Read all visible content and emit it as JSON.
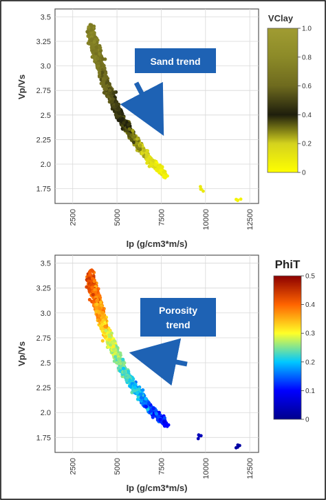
{
  "chart_data": [
    {
      "type": "scatter",
      "xlabel": "Ip (g/cm3*m/s)",
      "ylabel": "Vp/Vs",
      "xlim": [
        1500,
        13000
      ],
      "ylim": [
        1.6,
        3.58
      ],
      "xticks": [
        "2500",
        "5000",
        "7500",
        "10000",
        "12500"
      ],
      "yticks": [
        "3.5",
        "3.25",
        "3.0",
        "2.75",
        "2.5",
        "2.25",
        "2.0",
        "1.75"
      ],
      "grid": true,
      "color_by": "VClay",
      "colorbar": {
        "label": "VClay",
        "ticks": [
          "1.0",
          "0.8",
          "0.6",
          "0.4",
          "0.2",
          "0"
        ],
        "range": [
          0,
          1
        ],
        "colors": [
          "#ffff00",
          "#d4d21e",
          "#1e1e0c",
          "#6e6a1e",
          "#8c8a28",
          "#a09c32"
        ]
      },
      "annotation": {
        "text": "Sand trend",
        "box_color": "#1e62b4",
        "arrow_direction": "down-right"
      },
      "trend_points": [
        {
          "x": 3500,
          "y": 3.35,
          "c": 0.75
        },
        {
          "x": 3900,
          "y": 3.1,
          "c": 0.7
        },
        {
          "x": 4300,
          "y": 2.85,
          "c": 0.6
        },
        {
          "x": 4800,
          "y": 2.65,
          "c": 0.5
        },
        {
          "x": 5300,
          "y": 2.45,
          "c": 0.4
        },
        {
          "x": 6000,
          "y": 2.25,
          "c": 0.3
        },
        {
          "x": 6800,
          "y": 2.05,
          "c": 0.15
        },
        {
          "x": 7800,
          "y": 1.88,
          "c": 0.05
        },
        {
          "x": 9700,
          "y": 1.75,
          "c": 0.1
        },
        {
          "x": 11800,
          "y": 1.65,
          "c": 0.05
        }
      ]
    },
    {
      "type": "scatter",
      "xlabel": "Ip (g/cm3*m/s)",
      "ylabel": "Vp/Vs",
      "xlim": [
        1500,
        13000
      ],
      "ylim": [
        1.6,
        3.58
      ],
      "xticks": [
        "2500",
        "5000",
        "7500",
        "10000",
        "12500"
      ],
      "yticks": [
        "3.5",
        "3.25",
        "3.0",
        "2.75",
        "2.5",
        "2.25",
        "2.0",
        "1.75"
      ],
      "grid": true,
      "color_by": "PhiT",
      "colorbar": {
        "label": "PhiT",
        "ticks": [
          "0.5",
          "0.4",
          "0.3",
          "0.2",
          "0.1",
          "0"
        ],
        "range": [
          0,
          0.5
        ],
        "colors": [
          "#00008c",
          "#0000ff",
          "#00c8ff",
          "#ffff28",
          "#ff6400",
          "#8c0000"
        ]
      },
      "annotation": {
        "text": "Porosity trend",
        "box_color": "#1e62b4",
        "arrow_direction": "left"
      },
      "trend_points": [
        {
          "x": 3500,
          "y": 3.35,
          "c": 0.42
        },
        {
          "x": 3900,
          "y": 3.1,
          "c": 0.38
        },
        {
          "x": 4300,
          "y": 2.85,
          "c": 0.33
        },
        {
          "x": 4800,
          "y": 2.65,
          "c": 0.28
        },
        {
          "x": 5300,
          "y": 2.45,
          "c": 0.24
        },
        {
          "x": 6000,
          "y": 2.25,
          "c": 0.2
        },
        {
          "x": 6800,
          "y": 2.05,
          "c": 0.15
        },
        {
          "x": 7800,
          "y": 1.88,
          "c": 0.1
        },
        {
          "x": 9700,
          "y": 1.75,
          "c": 0.04
        },
        {
          "x": 11800,
          "y": 1.65,
          "c": 0.02
        }
      ]
    }
  ]
}
